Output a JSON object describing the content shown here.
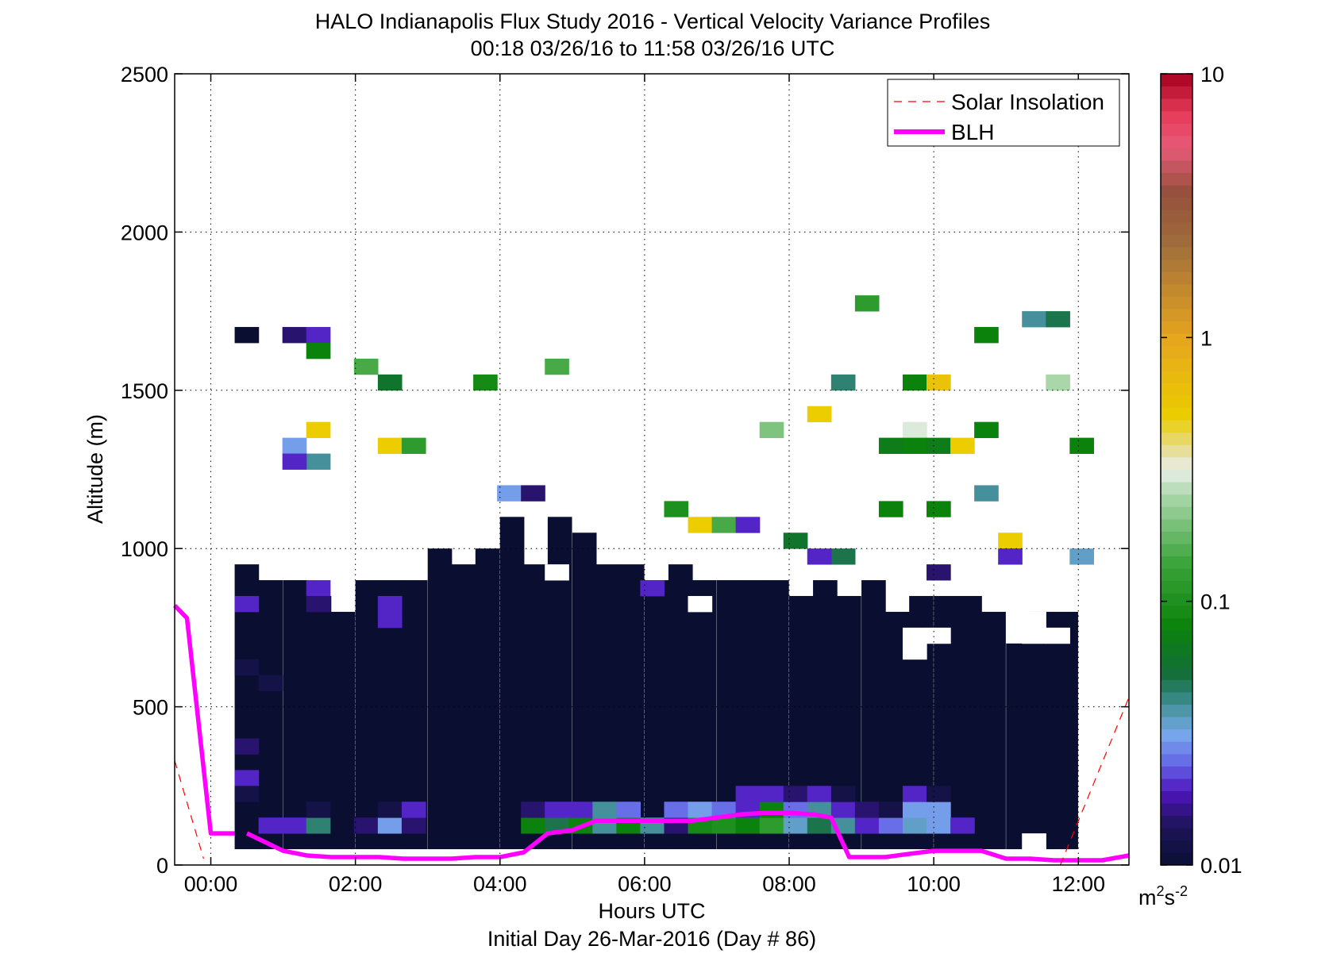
{
  "chart_data": {
    "type": "heatmap",
    "title": "HALO Indianapolis Flux Study 2016 - Vertical Velocity Variance Profiles",
    "subtitle": "00:18 03/26/16 to 11:58 03/26/16  UTC",
    "xlabel": "Hours UTC",
    "xlabel2": "Initial Day 26-Mar-2016 (Day # 86)",
    "ylabel": "Altitude (m)",
    "xlim": [
      -0.5,
      12.7
    ],
    "ylim": [
      0,
      2500
    ],
    "x_ticks": [
      0,
      2,
      4,
      6,
      8,
      10,
      12
    ],
    "x_tick_labels": [
      "00:00",
      "02:00",
      "04:00",
      "06:00",
      "08:00",
      "10:00",
      "12:00"
    ],
    "y_ticks": [
      0,
      500,
      1000,
      1500,
      2000,
      2500
    ],
    "y_tick_labels": [
      "0",
      "500",
      "1000",
      "1500",
      "2000",
      "2500"
    ],
    "grid": true,
    "legend_position": "top-right",
    "legend": [
      {
        "label": "Solar Insolation",
        "style": "dashed",
        "color": "#ff0000"
      },
      {
        "label": "BLH",
        "style": "solid",
        "color": "#ff00ff"
      }
    ],
    "colorbar": {
      "scale": "log",
      "range": [
        0.01,
        10
      ],
      "tick_values": [
        0.01,
        0.1,
        1,
        10
      ],
      "tick_labels": [
        "0.01",
        "0.1",
        "1",
        "10"
      ],
      "unit_main": "m",
      "unit_sup1": "2",
      "unit_mid": "s",
      "unit_sup2": "-2"
    },
    "heatmap": {
      "note_units": "hours UTC, altitude m, variance m2 s-2",
      "time_step_h": 0.33,
      "alt_step_m": 50,
      "low_level_block": {
        "t_start": 0.33,
        "t_end": 12.0,
        "alt_min": 50,
        "top_profile_m": [
          [
            0.33,
            950
          ],
          [
            0.66,
            900
          ],
          [
            1.0,
            900
          ],
          [
            1.33,
            850
          ],
          [
            1.66,
            800
          ],
          [
            2.0,
            900
          ],
          [
            2.33,
            900
          ],
          [
            2.66,
            900
          ],
          [
            3.0,
            1000
          ],
          [
            3.33,
            950
          ],
          [
            3.66,
            1000
          ],
          [
            4.0,
            1100
          ],
          [
            4.33,
            950
          ],
          [
            4.66,
            1100
          ],
          [
            5.0,
            1050
          ],
          [
            5.33,
            950
          ],
          [
            5.66,
            950
          ],
          [
            6.0,
            900
          ],
          [
            6.33,
            950
          ],
          [
            6.66,
            900
          ],
          [
            7.0,
            900
          ],
          [
            7.33,
            900
          ],
          [
            7.66,
            900
          ],
          [
            8.0,
            850
          ],
          [
            8.33,
            900
          ],
          [
            8.66,
            850
          ],
          [
            9.0,
            900
          ],
          [
            9.33,
            800
          ],
          [
            9.66,
            850
          ],
          [
            10.0,
            850
          ],
          [
            10.33,
            850
          ],
          [
            10.66,
            800
          ],
          [
            11.0,
            700
          ],
          [
            11.33,
            800
          ],
          [
            11.66,
            800
          ]
        ],
        "typical_value": 0.01
      },
      "cells": [
        {
          "t": 0.33,
          "z": 1650,
          "v": 0.01
        },
        {
          "t": 0.99,
          "z": 1650,
          "v": 0.015
        },
        {
          "t": 1.32,
          "z": 1650,
          "v": 0.02
        },
        {
          "t": 1.32,
          "z": 1600,
          "v": 0.08
        },
        {
          "t": 1.98,
          "z": 1550,
          "v": 0.15
        },
        {
          "t": 2.31,
          "z": 1500,
          "v": 0.06
        },
        {
          "t": 3.63,
          "z": 1500,
          "v": 0.09
        },
        {
          "t": 4.62,
          "z": 1550,
          "v": 0.15
        },
        {
          "t": 1.32,
          "z": 1350,
          "v": 0.5
        },
        {
          "t": 2.31,
          "z": 1300,
          "v": 0.5
        },
        {
          "t": 2.64,
          "z": 1300,
          "v": 0.12
        },
        {
          "t": 0.99,
          "z": 1300,
          "v": 0.03
        },
        {
          "t": 1.32,
          "z": 1250,
          "v": 0.04
        },
        {
          "t": 0.99,
          "z": 1250,
          "v": 0.02
        },
        {
          "t": 3.96,
          "z": 1150,
          "v": 0.03
        },
        {
          "t": 6.27,
          "z": 1100,
          "v": 0.1
        },
        {
          "t": 6.6,
          "z": 1050,
          "v": 0.5
        },
        {
          "t": 6.93,
          "z": 1050,
          "v": 0.15
        },
        {
          "t": 7.26,
          "z": 1050,
          "v": 0.02
        },
        {
          "t": 7.92,
          "z": 1000,
          "v": 0.06
        },
        {
          "t": 7.59,
          "z": 1350,
          "v": 0.2
        },
        {
          "t": 8.25,
          "z": 1400,
          "v": 0.5
        },
        {
          "t": 8.58,
          "z": 1500,
          "v": 0.045
        },
        {
          "t": 8.91,
          "z": 1750,
          "v": 0.12
        },
        {
          "t": 8.58,
          "z": 950,
          "v": 0.05
        },
        {
          "t": 8.25,
          "z": 950,
          "v": 0.02
        },
        {
          "t": 9.57,
          "z": 1500,
          "v": 0.08
        },
        {
          "t": 9.9,
          "z": 1500,
          "v": 0.6
        },
        {
          "t": 9.57,
          "z": 1350,
          "v": 0.3
        },
        {
          "t": 9.24,
          "z": 1300,
          "v": 0.07
        },
        {
          "t": 9.57,
          "z": 1300,
          "v": 0.08
        },
        {
          "t": 9.9,
          "z": 1300,
          "v": 0.07
        },
        {
          "t": 10.23,
          "z": 1300,
          "v": 0.5
        },
        {
          "t": 9.24,
          "z": 1100,
          "v": 0.08
        },
        {
          "t": 9.9,
          "z": 1100,
          "v": 0.08
        },
        {
          "t": 10.56,
          "z": 1150,
          "v": 0.04
        },
        {
          "t": 10.89,
          "z": 1000,
          "v": 0.5
        },
        {
          "t": 10.89,
          "z": 950,
          "v": 0.02
        },
        {
          "t": 10.56,
          "z": 1650,
          "v": 0.08
        },
        {
          "t": 10.56,
          "z": 1350,
          "v": 0.08
        },
        {
          "t": 11.22,
          "z": 1700,
          "v": 0.04
        },
        {
          "t": 11.55,
          "z": 1700,
          "v": 0.05
        },
        {
          "t": 11.55,
          "z": 1500,
          "v": 0.25
        },
        {
          "t": 11.88,
          "z": 1300,
          "v": 0.08
        },
        {
          "t": 11.88,
          "z": 950,
          "v": 0.035
        },
        {
          "t": 9.9,
          "z": 900,
          "v": 0.015
        },
        {
          "t": 4.29,
          "z": 1150,
          "v": 0.015
        },
        {
          "t": 0.33,
          "z": 800,
          "v": 0.02
        },
        {
          "t": 1.32,
          "z": 850,
          "v": 0.02
        },
        {
          "t": 1.32,
          "z": 800,
          "v": 0.015
        },
        {
          "t": 2.31,
          "z": 800,
          "v": 0.02
        },
        {
          "t": 2.31,
          "z": 750,
          "v": 0.02
        },
        {
          "t": 5.94,
          "z": 850,
          "v": 0.02
        },
        {
          "t": 0.33,
          "z": 250,
          "v": 0.02
        },
        {
          "t": 0.33,
          "z": 600,
          "v": 0.012
        },
        {
          "t": 0.33,
          "z": 350,
          "v": 0.015
        },
        {
          "t": 0.66,
          "z": 550,
          "v": 0.012
        },
        {
          "t": 0.66,
          "z": 100,
          "v": 0.02
        },
        {
          "t": 0.99,
          "z": 100,
          "v": 0.02
        },
        {
          "t": 1.32,
          "z": 100,
          "v": 0.045
        },
        {
          "t": 1.98,
          "z": 100,
          "v": 0.015
        },
        {
          "t": 2.31,
          "z": 100,
          "v": 0.03
        },
        {
          "t": 2.64,
          "z": 100,
          "v": 0.015
        },
        {
          "t": 4.29,
          "z": 100,
          "v": 0.08
        },
        {
          "t": 4.62,
          "z": 100,
          "v": 0.05
        },
        {
          "t": 4.95,
          "z": 100,
          "v": 0.08
        },
        {
          "t": 5.28,
          "z": 100,
          "v": 0.04
        },
        {
          "t": 5.61,
          "z": 100,
          "v": 0.08
        },
        {
          "t": 5.94,
          "z": 100,
          "v": 0.04
        },
        {
          "t": 6.27,
          "z": 100,
          "v": 0.015
        },
        {
          "t": 6.6,
          "z": 100,
          "v": 0.09
        },
        {
          "t": 6.93,
          "z": 100,
          "v": 0.1
        },
        {
          "t": 7.26,
          "z": 100,
          "v": 0.08
        },
        {
          "t": 7.59,
          "z": 100,
          "v": 0.12
        },
        {
          "t": 7.92,
          "z": 100,
          "v": 0.035
        },
        {
          "t": 8.25,
          "z": 100,
          "v": 0.05
        },
        {
          "t": 8.58,
          "z": 100,
          "v": 0.04
        },
        {
          "t": 8.91,
          "z": 100,
          "v": 0.02
        },
        {
          "t": 9.24,
          "z": 100,
          "v": 0.025
        },
        {
          "t": 9.57,
          "z": 100,
          "v": 0.035
        },
        {
          "t": 9.9,
          "z": 100,
          "v": 0.03
        },
        {
          "t": 10.23,
          "z": 100,
          "v": 0.02
        },
        {
          "t": 4.29,
          "z": 150,
          "v": 0.015
        },
        {
          "t": 4.62,
          "z": 150,
          "v": 0.02
        },
        {
          "t": 4.95,
          "z": 150,
          "v": 0.02
        },
        {
          "t": 5.28,
          "z": 150,
          "v": 0.04
        },
        {
          "t": 5.61,
          "z": 150,
          "v": 0.025
        },
        {
          "t": 6.27,
          "z": 150,
          "v": 0.025
        },
        {
          "t": 6.6,
          "z": 150,
          "v": 0.03
        },
        {
          "t": 6.93,
          "z": 150,
          "v": 0.025
        },
        {
          "t": 7.26,
          "z": 150,
          "v": 0.02
        },
        {
          "t": 7.59,
          "z": 150,
          "v": 0.08
        },
        {
          "t": 7.92,
          "z": 150,
          "v": 0.025
        },
        {
          "t": 8.25,
          "z": 150,
          "v": 0.04
        },
        {
          "t": 8.58,
          "z": 150,
          "v": 0.02
        },
        {
          "t": 8.91,
          "z": 150,
          "v": 0.015
        },
        {
          "t": 9.24,
          "z": 150,
          "v": 0.012
        },
        {
          "t": 9.57,
          "z": 150,
          "v": 0.03
        },
        {
          "t": 9.9,
          "z": 150,
          "v": 0.03
        },
        {
          "t": 2.31,
          "z": 150,
          "v": 0.012
        },
        {
          "t": 2.64,
          "z": 150,
          "v": 0.02
        },
        {
          "t": 1.32,
          "z": 150,
          "v": 0.012
        },
        {
          "t": 7.26,
          "z": 200,
          "v": 0.02
        },
        {
          "t": 7.59,
          "z": 200,
          "v": 0.02
        },
        {
          "t": 7.92,
          "z": 200,
          "v": 0.015
        },
        {
          "t": 8.25,
          "z": 200,
          "v": 0.02
        },
        {
          "t": 8.58,
          "z": 200,
          "v": 0.012
        },
        {
          "t": 9.57,
          "z": 200,
          "v": 0.02
        },
        {
          "t": 9.9,
          "z": 200,
          "v": 0.012
        },
        {
          "t": 0.33,
          "z": 200,
          "v": 0.012
        }
      ],
      "gaps": [
        {
          "t": 6.6,
          "z": 800
        },
        {
          "t": 9.57,
          "z": 700
        },
        {
          "t": 9.57,
          "z": 650
        },
        {
          "t": 9.9,
          "z": 700
        },
        {
          "t": 11.22,
          "z": 700
        },
        {
          "t": 11.55,
          "z": 700
        },
        {
          "t": 11.22,
          "z": 750
        },
        {
          "t": 4.62,
          "z": 900
        },
        {
          "t": 11.22,
          "z": 50
        }
      ]
    },
    "series": [
      {
        "name": "BLH",
        "color": "#ff00ff",
        "x": [
          -0.5,
          -0.33,
          0.0,
          0.33
        ],
        "y": [
          820,
          780,
          100,
          100
        ]
      },
      {
        "name": "BLH",
        "color": "#ff00ff",
        "x": [
          0.5,
          1.0,
          1.33,
          1.66,
          2.0,
          2.33,
          2.66,
          3.0,
          3.33,
          3.66,
          4.0,
          4.33,
          4.66,
          5.0,
          5.33,
          5.66,
          6.0,
          6.33,
          6.66,
          7.0,
          7.33,
          7.66,
          8.0,
          8.33,
          8.58,
          8.83,
          9.0,
          9.33,
          9.66,
          10.0,
          10.33,
          10.66,
          11.0,
          11.33,
          11.66,
          12.0,
          12.33,
          12.7
        ],
        "y": [
          100,
          45,
          30,
          25,
          25,
          25,
          20,
          20,
          20,
          25,
          25,
          40,
          100,
          110,
          140,
          140,
          140,
          140,
          140,
          150,
          160,
          165,
          165,
          160,
          150,
          25,
          25,
          25,
          35,
          45,
          45,
          45,
          20,
          20,
          15,
          15,
          15,
          30
        ]
      },
      {
        "name": "Solar Insolation",
        "color": "#ff0000",
        "style": "dashed",
        "x": [
          -0.5,
          -0.1
        ],
        "y": [
          330,
          20
        ]
      },
      {
        "name": "Solar Insolation",
        "color": "#ff0000",
        "style": "dashed",
        "x": [
          11.75,
          12.7
        ],
        "y": [
          0,
          530
        ]
      }
    ]
  }
}
